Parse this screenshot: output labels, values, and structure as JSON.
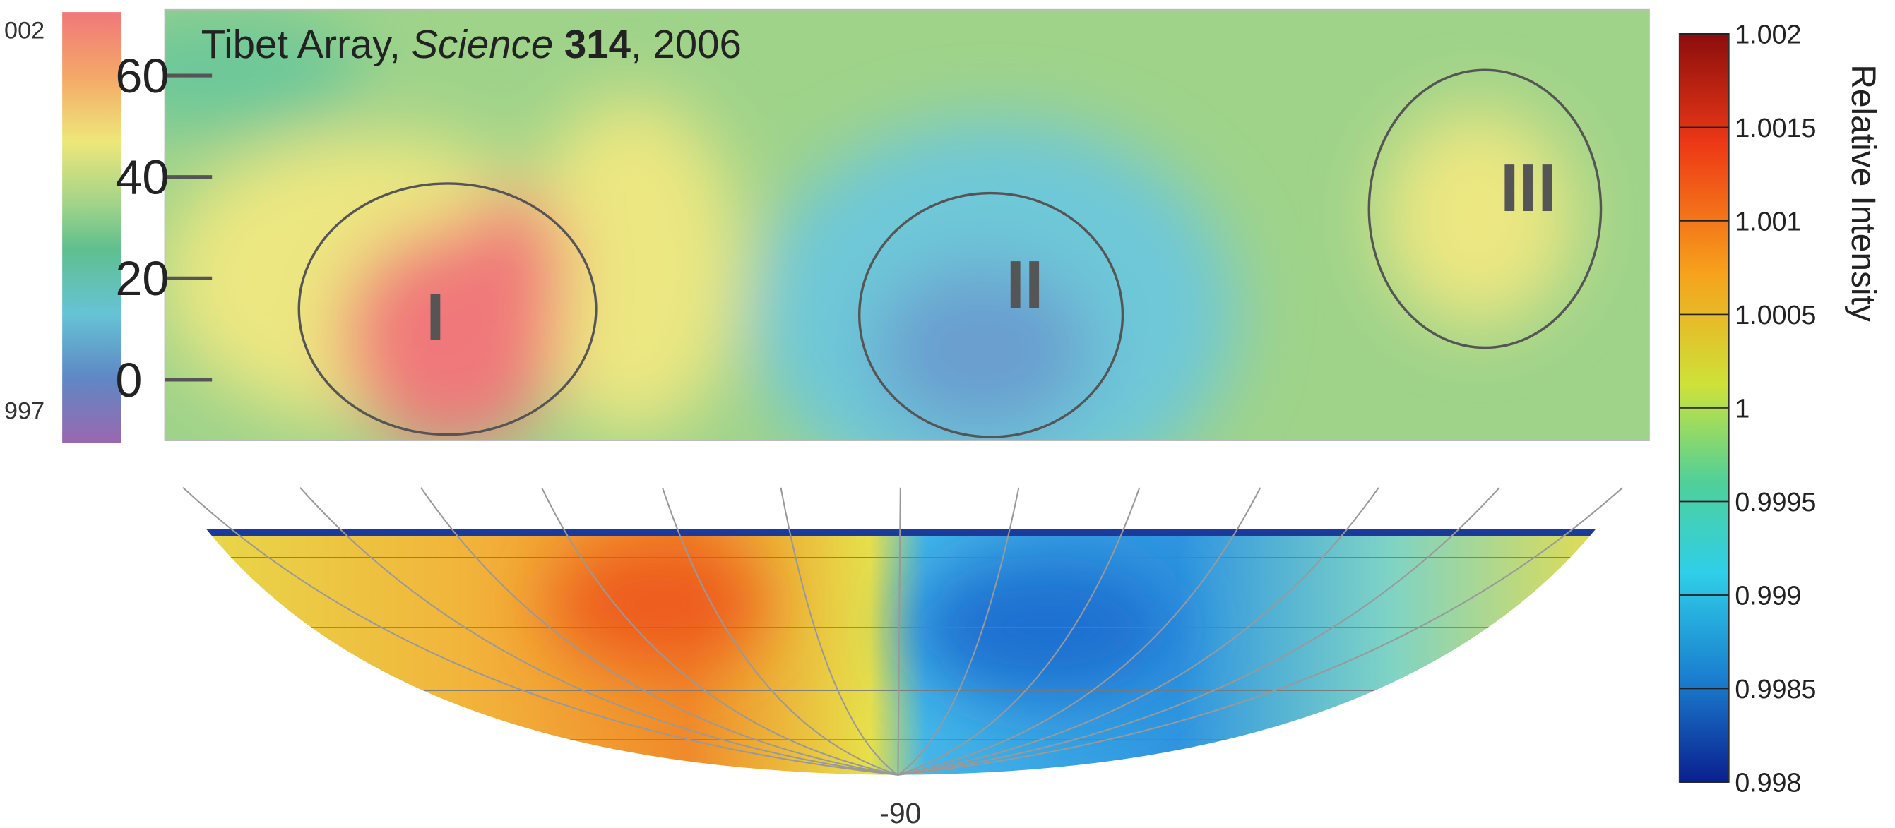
{
  "figure": {
    "top_panel": {
      "title": {
        "text": "Tibet Array, ",
        "journal": "Science",
        "volume": "314",
        "year": ", 2006"
      },
      "ylim": [
        -12,
        73
      ],
      "yticks": [
        60,
        40,
        20,
        0
      ],
      "regions": [
        "I",
        "II",
        "III"
      ],
      "left_colorbar_labels": [
        "002",
        "997"
      ]
    },
    "bottom_panel": {
      "xlabel": "-90"
    },
    "colorbar": {
      "label": "Relative Intensity",
      "lim": [
        0.998,
        1.002
      ],
      "ticks": [
        1.002,
        1.0015,
        1.001,
        1.0005,
        1,
        0.9995,
        0.999,
        0.9985,
        0.998
      ]
    }
  }
}
